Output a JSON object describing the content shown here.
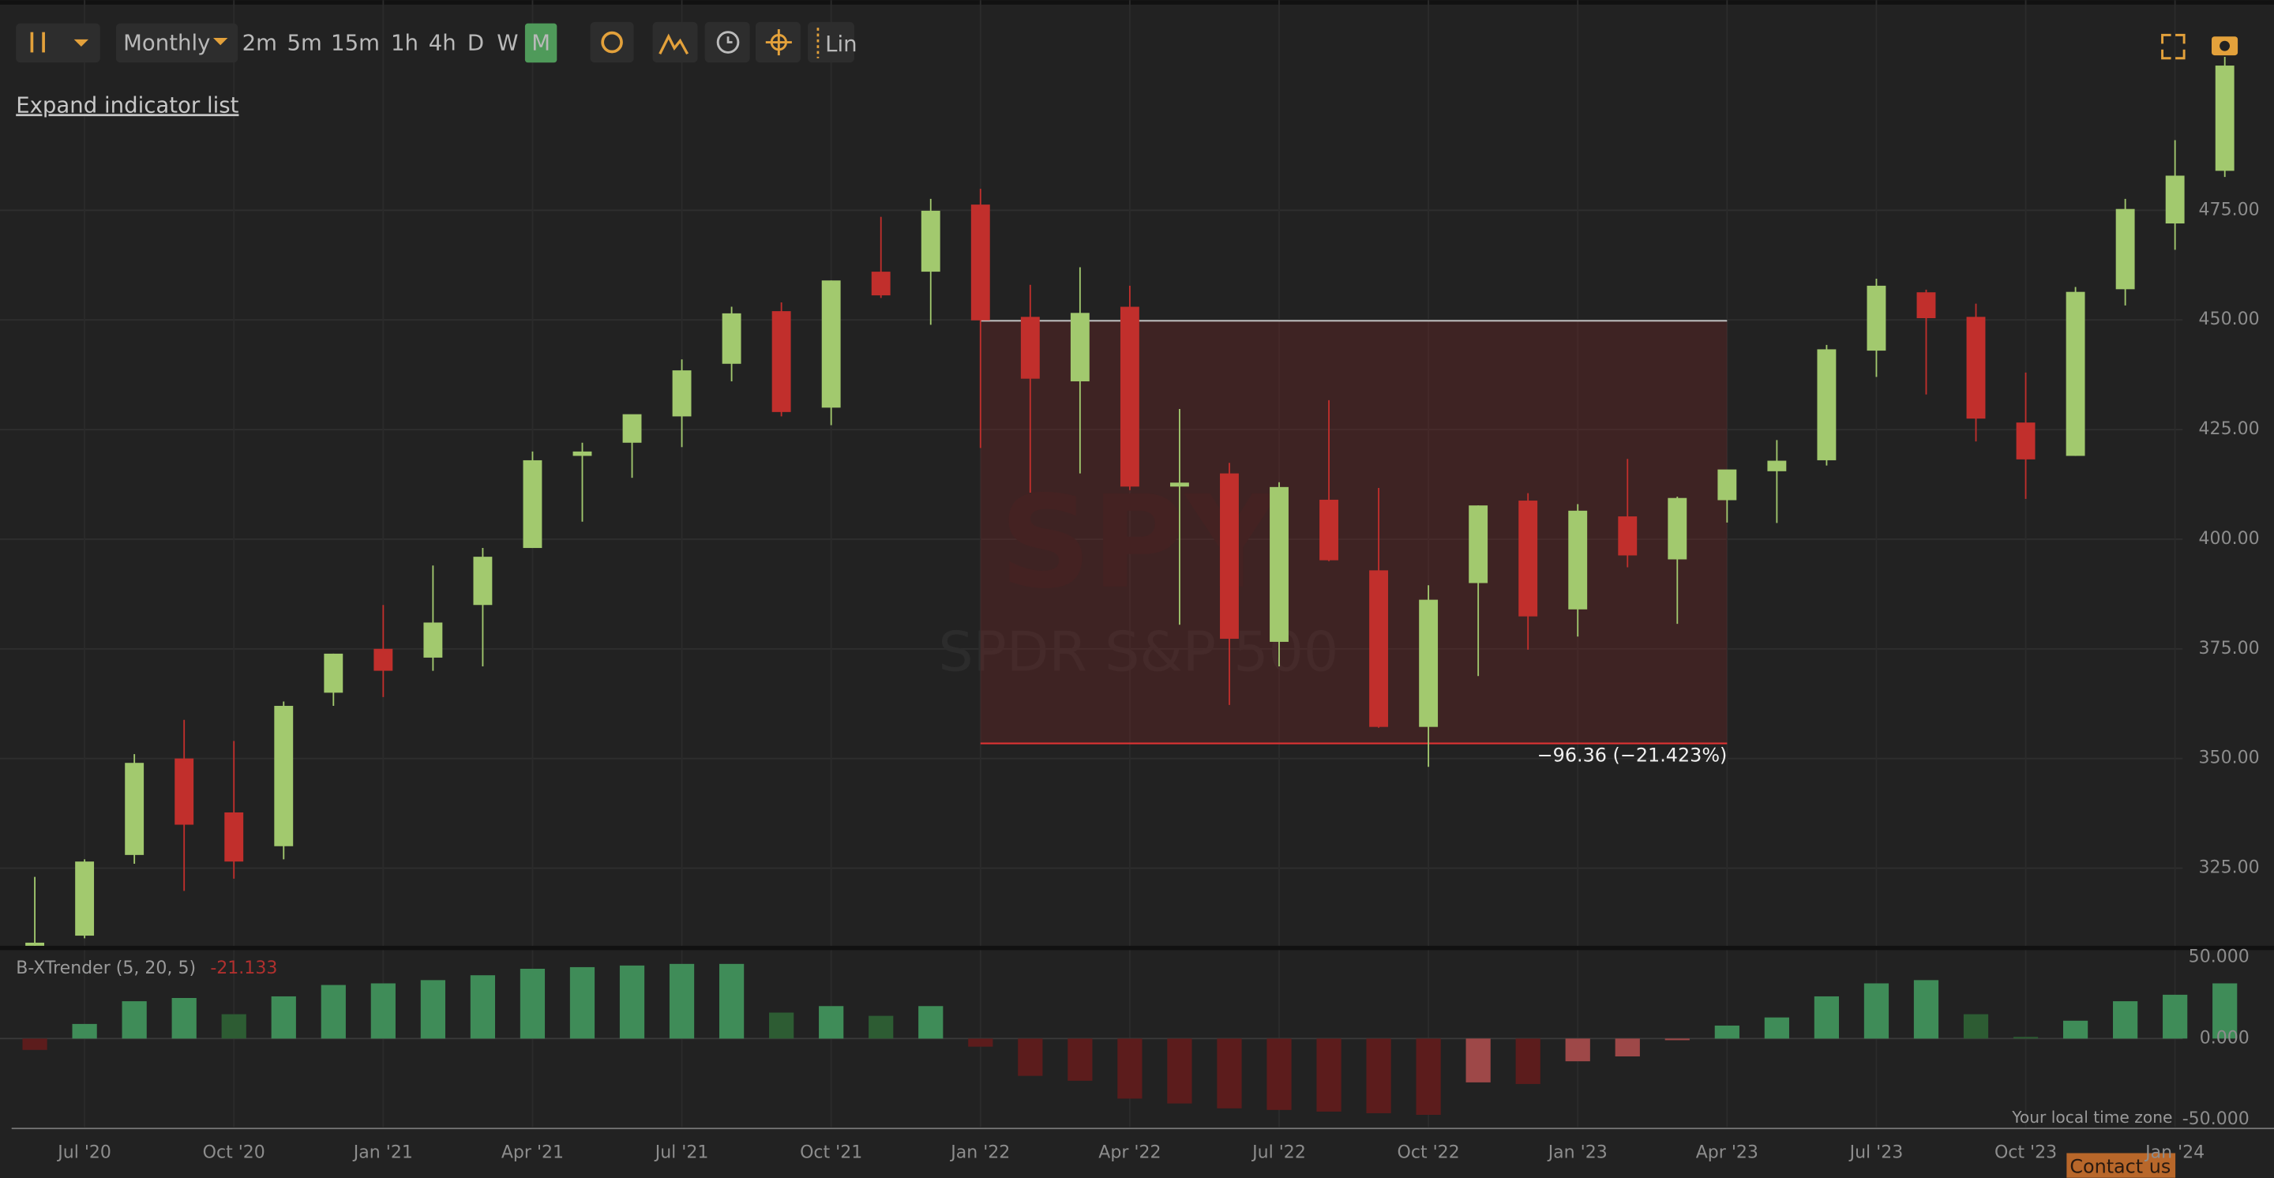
{
  "toolbar": {
    "interval": "Monthly",
    "intervals": [
      "2m",
      "5m",
      "15m",
      "1h",
      "4h",
      "D",
      "W",
      "M"
    ],
    "scale": "Lin"
  },
  "expand_link": "Expand indicator list",
  "watermark": {
    "symbol": "SPY",
    "name": "SPDR S&P 500"
  },
  "footer": {
    "timezone": "Your local time zone",
    "contact": "Contact us"
  },
  "chart_data": [
    {
      "type": "candlestick",
      "categories": [
        null,
        "Jul '20",
        null,
        null,
        "Oct '20",
        null,
        null,
        "Jan '21",
        null,
        null,
        "Apr '21",
        null,
        null,
        "Jul '21",
        null,
        null,
        "Oct '21",
        null,
        null,
        "Jan '22",
        null,
        null,
        "Apr '22",
        null,
        null,
        "Jul '22",
        null,
        null,
        "Oct '22",
        null,
        null,
        "Jan '23",
        null,
        null,
        "Apr '23",
        null,
        null,
        "Jul '23",
        null,
        null,
        "Oct '23",
        null,
        null,
        "Jan '24",
        null
      ],
      "open": [
        304,
        309.6,
        328,
        350,
        337.7,
        330,
        365,
        375,
        373,
        385,
        398,
        419,
        422,
        428,
        440,
        452,
        430,
        461,
        461,
        476.3,
        450.7,
        436,
        453,
        412,
        415,
        376.6,
        409,
        392.9,
        357.2,
        390,
        408.8,
        384,
        405.2,
        395.4,
        408.9,
        415.5,
        418,
        443,
        456.3,
        450.7,
        426.6,
        419,
        457,
        472,
        484
      ],
      "high": [
        323,
        327,
        351,
        358.8,
        354,
        363,
        373.9,
        385,
        394,
        398,
        420,
        422,
        428,
        441,
        453,
        454,
        459,
        473.5,
        477.6,
        479.9,
        458,
        462,
        457.8,
        429.7,
        417.4,
        413,
        431.7,
        411.7,
        389.5,
        407.7,
        410.5,
        408,
        418.3,
        409.7,
        415,
        422.6,
        444.3,
        459.4,
        456.9,
        453.7,
        438,
        457.5,
        477.6,
        491,
        510
      ],
      "low": [
        296,
        309,
        326,
        319.8,
        322.6,
        327,
        362,
        364,
        370,
        371,
        398,
        404,
        414,
        421,
        436,
        428,
        426,
        455,
        448.9,
        420.8,
        410.6,
        415,
        411.2,
        380.5,
        362.2,
        371,
        395,
        357,
        348.1,
        368.8,
        374.8,
        377.8,
        393.6,
        380.7,
        403.8,
        403.7,
        416.8,
        437,
        433,
        422.3,
        409.2,
        419,
        453.3,
        466,
        482.6
      ],
      "close": [
        308,
        326.5,
        349,
        334.9,
        326.5,
        362,
        373.9,
        370,
        381,
        396,
        418,
        420,
        428.5,
        438.5,
        451.5,
        429,
        459,
        455.6,
        474.9,
        449.9,
        436.6,
        451.6,
        412,
        412.9,
        377.3,
        411.9,
        395.2,
        357.2,
        386.2,
        407.7,
        382.4,
        406.5,
        396.3,
        409.4,
        415.9,
        417.9,
        443.3,
        457.8,
        450.4,
        427.5,
        418.2,
        456.4,
        475.3,
        482.9,
        508
      ],
      "up_color": "#a2c96e",
      "down_color": "#c12f2c",
      "ylim": [
        307.3,
        522.9
      ],
      "yticks": [
        {
          "value": 325,
          "label": "325.00"
        },
        {
          "value": 350,
          "label": "350.00"
        },
        {
          "value": 375,
          "label": "375.00"
        },
        {
          "value": 400,
          "label": "400.00"
        },
        {
          "value": 425,
          "label": "425.00"
        },
        {
          "value": 450,
          "label": "450.00"
        },
        {
          "value": 475,
          "label": "475.00"
        }
      ],
      "grid": true,
      "measure": {
        "x_from": "Jan '22",
        "x_to": "Apr '23",
        "start": 449.8,
        "end": 353.44,
        "label": "−96.36 (−21.423%)"
      }
    },
    {
      "type": "bar",
      "title": "B-XTrender (5, 20, 5)",
      "current_value": -21.133,
      "values": [
        -7,
        9,
        23,
        25,
        15,
        26,
        33,
        34,
        36,
        39,
        43,
        44,
        45,
        46,
        46,
        16,
        20,
        14,
        20,
        -5,
        -23,
        -26,
        -37,
        -40,
        -43,
        -44,
        -45,
        -46,
        -47,
        -27,
        -28,
        -14,
        -11,
        -1,
        8,
        13,
        26,
        34,
        36,
        15,
        1,
        11,
        23,
        27,
        34
      ],
      "colors": {
        "rising_positive": "#3f8c58",
        "falling_positive": "#2d5c33",
        "falling_negative": "#5c1c1c",
        "rising_negative": "#9e4848"
      },
      "ylim": [
        -54.5,
        54.5
      ],
      "yticks": [
        {
          "value": -50,
          "label": "-50.000"
        },
        {
          "value": 0,
          "label": "0.000"
        },
        {
          "value": 50,
          "label": "50.000"
        }
      ]
    }
  ]
}
